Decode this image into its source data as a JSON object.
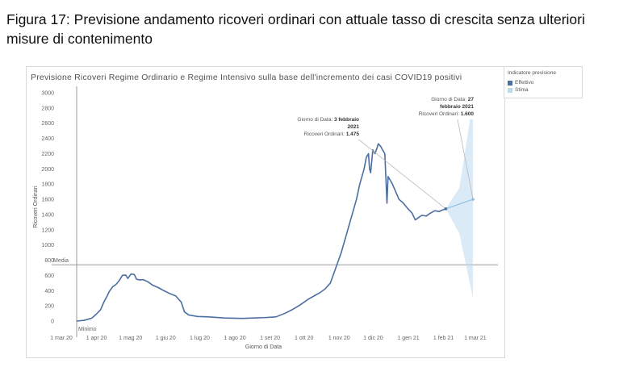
{
  "caption": "Figura 17: Previsione andamento ricoveri ordinari con attuale tasso di crescita senza ulteriori misure di contenimento",
  "legend": {
    "title": "Indicatore previsione",
    "items": [
      {
        "label": "Effettivo",
        "color": "#4a6fa0"
      },
      {
        "label": "Stima",
        "color": "#bcd9ee"
      }
    ]
  },
  "annotations": [
    {
      "line1_prefix": "Giorno di Data: ",
      "line1_value": "3 febbraio",
      "line2": "2021",
      "line3_prefix": "Ricoveri Ordinari: ",
      "line3_value": "1.475"
    },
    {
      "line1_prefix": "Giorno di Data: ",
      "line1_value": "27",
      "line2": "febbraio 2021",
      "line3_prefix": "Ricoveri Ordinari: ",
      "line3_value": "1.600"
    }
  ],
  "chart_data": {
    "type": "line",
    "title": "Previsione Ricoveri Regime Ordinario e Regime Intensivo sulla base dell'incremento dei casi COVID19 positivi",
    "xlabel": "Giorno di Data",
    "ylabel": "Ricoveri Ordinari",
    "ylim": [
      0,
      3000
    ],
    "yticks": [
      0,
      200,
      400,
      600,
      800,
      1000,
      1200,
      1400,
      1600,
      1800,
      2000,
      2200,
      2400,
      2600,
      2800,
      3000
    ],
    "yticks_labels": [
      "0",
      "200",
      "400",
      "600",
      "800",
      "1000",
      "1200",
      "1400",
      "1600",
      "1800",
      "2000",
      "2200",
      "2400",
      "2600",
      "2800",
      "3000"
    ],
    "xlim": [
      "2020-03-01",
      "2021-03-21"
    ],
    "xticks": [
      {
        "date": "2020-03-01",
        "label": "1 mar 20"
      },
      {
        "date": "2020-04-01",
        "label": "1 apr 20"
      },
      {
        "date": "2020-05-01",
        "label": "1 mag 20"
      },
      {
        "date": "2020-06-01",
        "label": "1 giu 20"
      },
      {
        "date": "2020-07-01",
        "label": "1 lug 20"
      },
      {
        "date": "2020-08-01",
        "label": "1 ago 20"
      },
      {
        "date": "2020-09-01",
        "label": "1 set 20"
      },
      {
        "date": "2020-10-01",
        "label": "1 ott 20"
      },
      {
        "date": "2020-11-01",
        "label": "1 nov 20"
      },
      {
        "date": "2020-12-01",
        "label": "1 dic 20"
      },
      {
        "date": "2021-01-01",
        "label": "1 gen 21"
      },
      {
        "date": "2021-02-01",
        "label": "1 feb 21"
      },
      {
        "date": "2021-03-01",
        "label": "1 mar 21"
      }
    ],
    "reference_lines": [
      {
        "label": "Media",
        "axis": "y",
        "value": 740
      },
      {
        "label": "Minimo",
        "axis": "x",
        "value": "2020-03-01"
      }
    ],
    "series": [
      {
        "name": "Effettivo",
        "color": "#4a6fa0",
        "points": [
          [
            "2020-03-01",
            0
          ],
          [
            "2020-03-08",
            10
          ],
          [
            "2020-03-15",
            40
          ],
          [
            "2020-03-19",
            90
          ],
          [
            "2020-03-23",
            150
          ],
          [
            "2020-03-26",
            250
          ],
          [
            "2020-03-29",
            330
          ],
          [
            "2020-03-31",
            390
          ],
          [
            "2020-04-03",
            450
          ],
          [
            "2020-04-06",
            480
          ],
          [
            "2020-04-09",
            530
          ],
          [
            "2020-04-12",
            600
          ],
          [
            "2020-04-15",
            605
          ],
          [
            "2020-04-17",
            560
          ],
          [
            "2020-04-20",
            620
          ],
          [
            "2020-04-23",
            610
          ],
          [
            "2020-04-25",
            550
          ],
          [
            "2020-04-28",
            540
          ],
          [
            "2020-05-01",
            545
          ],
          [
            "2020-05-05",
            520
          ],
          [
            "2020-05-10",
            470
          ],
          [
            "2020-05-15",
            440
          ],
          [
            "2020-05-20",
            400
          ],
          [
            "2020-05-25",
            365
          ],
          [
            "2020-05-31",
            330
          ],
          [
            "2020-06-05",
            250
          ],
          [
            "2020-06-08",
            120
          ],
          [
            "2020-06-12",
            80
          ],
          [
            "2020-06-20",
            60
          ],
          [
            "2020-06-30",
            55
          ],
          [
            "2020-07-15",
            40
          ],
          [
            "2020-07-31",
            35
          ],
          [
            "2020-08-10",
            40
          ],
          [
            "2020-08-20",
            45
          ],
          [
            "2020-08-31",
            55
          ],
          [
            "2020-09-08",
            100
          ],
          [
            "2020-09-15",
            150
          ],
          [
            "2020-09-22",
            210
          ],
          [
            "2020-09-30",
            290
          ],
          [
            "2020-10-05",
            330
          ],
          [
            "2020-10-10",
            370
          ],
          [
            "2020-10-15",
            420
          ],
          [
            "2020-10-20",
            500
          ],
          [
            "2020-10-25",
            700
          ],
          [
            "2020-10-30",
            900
          ],
          [
            "2020-11-05",
            1200
          ],
          [
            "2020-11-09",
            1400
          ],
          [
            "2020-11-13",
            1600
          ],
          [
            "2020-11-16",
            1800
          ],
          [
            "2020-11-20",
            2000
          ],
          [
            "2020-11-22",
            2150
          ],
          [
            "2020-11-24",
            2200
          ],
          [
            "2020-11-25",
            2000
          ],
          [
            "2020-11-26",
            1950
          ],
          [
            "2020-11-28",
            2250
          ],
          [
            "2020-11-30",
            2200
          ],
          [
            "2020-12-02",
            2280
          ],
          [
            "2020-12-03",
            2330
          ],
          [
            "2020-12-05",
            2300
          ],
          [
            "2020-12-07",
            2250
          ],
          [
            "2020-12-09",
            2200
          ],
          [
            "2020-12-10",
            1880
          ],
          [
            "2020-12-11",
            1550
          ],
          [
            "2020-12-12",
            1900
          ],
          [
            "2020-12-14",
            1850
          ],
          [
            "2020-12-16",
            1800
          ],
          [
            "2020-12-19",
            1700
          ],
          [
            "2020-12-22",
            1600
          ],
          [
            "2020-12-26",
            1550
          ],
          [
            "2020-12-30",
            1480
          ],
          [
            "2021-01-03",
            1420
          ],
          [
            "2021-01-06",
            1330
          ],
          [
            "2021-01-09",
            1360
          ],
          [
            "2021-01-12",
            1390
          ],
          [
            "2021-01-16",
            1380
          ],
          [
            "2021-01-20",
            1420
          ],
          [
            "2021-01-24",
            1450
          ],
          [
            "2021-01-28",
            1440
          ],
          [
            "2021-01-31",
            1460
          ],
          [
            "2021-02-03",
            1475
          ]
        ]
      },
      {
        "name": "Stima",
        "color": "#bcd9ee",
        "points": [
          [
            "2021-02-03",
            1475
          ],
          [
            "2021-02-27",
            1600
          ]
        ],
        "band_upper": [
          [
            "2021-02-03",
            1475
          ],
          [
            "2021-02-15",
            1750
          ],
          [
            "2021-02-27",
            2900
          ]
        ],
        "band_lower": [
          [
            "2021-02-03",
            1475
          ],
          [
            "2021-02-15",
            1150
          ],
          [
            "2021-02-27",
            300
          ]
        ]
      }
    ]
  }
}
